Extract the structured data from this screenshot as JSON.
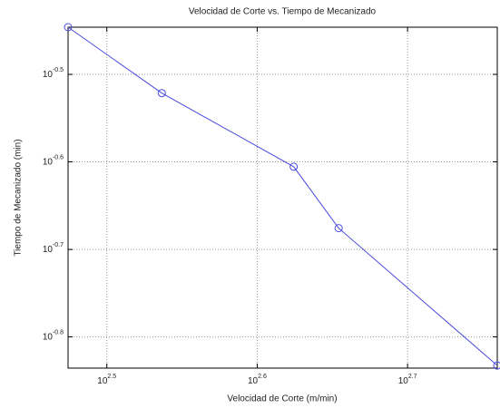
{
  "chart_data": {
    "type": "line",
    "title": "Velocidad de Corte vs. Tiempo de Mecanizado",
    "xlabel": "Velocidad de Corte (m/min)",
    "ylabel": "Tiempo de Mecanizado (min)",
    "x": [
      298,
      344,
      421,
      451,
      575
    ],
    "values": [
      0.358,
      0.301,
      0.248,
      0.211,
      0.147
    ],
    "color": "#4a4adf",
    "xscale": "log",
    "yscale": "log",
    "xlim": [
      298,
      575
    ],
    "ylim": [
      0.146,
      0.358
    ],
    "xticks": [
      {
        "value": 316.23,
        "label": "10^2.5"
      },
      {
        "value": 398.11,
        "label": "10^2.6"
      },
      {
        "value": 501.19,
        "label": "10^2.7"
      }
    ],
    "yticks": [
      {
        "value": 0.3162,
        "label": "10^-0.5"
      },
      {
        "value": 0.2512,
        "label": "10^-0.6"
      },
      {
        "value": 0.1995,
        "label": "10^-0.7"
      },
      {
        "value": 0.1585,
        "label": "10^-0.8"
      }
    ],
    "grid": true
  }
}
